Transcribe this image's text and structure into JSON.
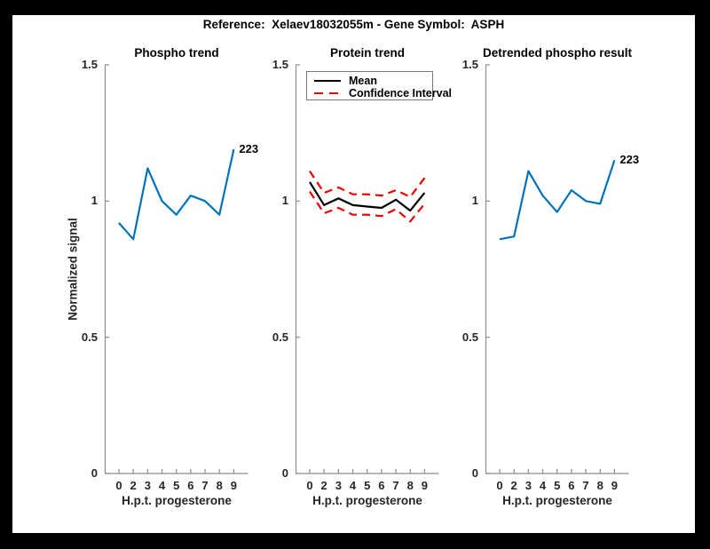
{
  "figure": {
    "suptitle": "Reference:  Xelaev18032055m - Gene Symbol:  ASPH",
    "colors": {
      "blue": "#0072BD",
      "red": "#EE0000",
      "black": "#000000",
      "axis": "#8C8C8C",
      "tick_text": "#262626",
      "frame": "#000000",
      "background": "#FFFFFF"
    }
  },
  "axes": {
    "xlabel": "H.p.t. progesterone",
    "ylabel": "Normalized signal",
    "xticklabels": [
      "0",
      "2",
      "3",
      "4",
      "5",
      "6",
      "7",
      "8",
      "9"
    ],
    "yticks": [
      {
        "v": 0,
        "label": "0"
      },
      {
        "v": 0.5,
        "label": "0.5"
      },
      {
        "v": 1,
        "label": "1"
      },
      {
        "v": 1.5,
        "label": "1.5"
      }
    ],
    "ylim": [
      0,
      1.5
    ],
    "grid": false
  },
  "chart_data": [
    {
      "type": "line",
      "title": "Phospho trend",
      "x": [
        0,
        2,
        3,
        4,
        5,
        6,
        7,
        8,
        9
      ],
      "values": [
        0.92,
        0.86,
        1.12,
        1.0,
        0.95,
        1.02,
        1.0,
        0.95,
        1.19
      ],
      "color": "#0072BD",
      "end_label": "223",
      "xlabel": "H.p.t. progesterone",
      "ylabel": "Normalized signal",
      "ylim": [
        0,
        1.5
      ]
    },
    {
      "type": "line",
      "title": "Protein trend",
      "x": [
        0,
        2,
        3,
        4,
        5,
        6,
        7,
        8,
        9
      ],
      "series": [
        {
          "name": "Mean",
          "values": [
            1.07,
            0.985,
            1.01,
            0.985,
            0.98,
            0.975,
            1.005,
            0.965,
            1.03
          ],
          "color": "#000000",
          "style": "solid"
        },
        {
          "name": "Confidence Interval upper",
          "values": [
            1.11,
            1.03,
            1.05,
            1.025,
            1.025,
            1.02,
            1.04,
            1.015,
            1.085
          ],
          "color": "#EE0000",
          "style": "dashed"
        },
        {
          "name": "Confidence Interval lower",
          "values": [
            1.035,
            0.955,
            0.975,
            0.95,
            0.95,
            0.945,
            0.97,
            0.925,
            0.99
          ],
          "color": "#EE0000",
          "style": "dashed"
        }
      ],
      "legend_position": "top-left",
      "xlabel": "H.p.t. progesterone",
      "ylim": [
        0,
        1.5
      ]
    },
    {
      "type": "line",
      "title": "Detrended phospho result",
      "x": [
        0,
        2,
        3,
        4,
        5,
        6,
        7,
        8,
        9
      ],
      "values": [
        0.86,
        0.87,
        1.11,
        1.02,
        0.96,
        1.04,
        1.0,
        0.99,
        1.15
      ],
      "color": "#0072BD",
      "end_label": "223",
      "xlabel": "H.p.t. progesterone",
      "ylim": [
        0,
        1.5
      ]
    }
  ],
  "legend": {
    "entries": [
      {
        "label": "Mean",
        "color": "#000000",
        "dash": "solid"
      },
      {
        "label": "Confidence Interval",
        "color": "#EE0000",
        "dash": "dashed"
      }
    ]
  }
}
